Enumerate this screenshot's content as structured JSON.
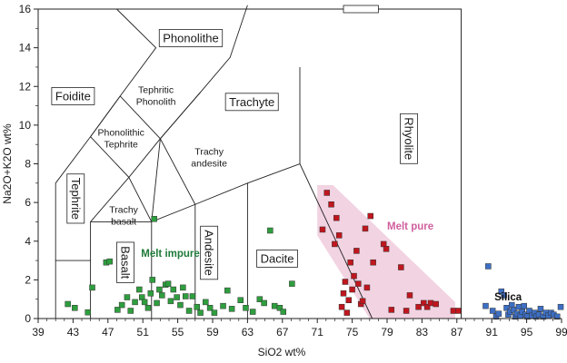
{
  "chart_data": {
    "type": "scatter",
    "xlabel": "SiO2  wt%",
    "ylabel": "Na2O+K2O wt%",
    "xlim": [
      39,
      99
    ],
    "ylim": [
      0,
      16
    ],
    "xticks": [
      39,
      43,
      47,
      51,
      55,
      59,
      63,
      67,
      71,
      75,
      79,
      83,
      87,
      91,
      95,
      99
    ],
    "yticks": [
      0,
      2,
      4,
      6,
      8,
      10,
      12,
      14,
      16
    ],
    "grid": false,
    "fields": [
      {
        "key": "foidite",
        "label": "Foidite",
        "boxed": true,
        "x": 43,
        "y": 11.5
      },
      {
        "key": "phonolithe",
        "label": "Phonolithe",
        "boxed": true,
        "x": 56.5,
        "y": 14.5
      },
      {
        "key": "tephritic_phonolith",
        "label": [
          "Tephritic",
          "Phonolith"
        ],
        "boxed": false,
        "x": 52.5,
        "y": 11.5
      },
      {
        "key": "trachyte",
        "label": "Trachyte",
        "boxed": true,
        "x": 63.5,
        "y": 11.2
      },
      {
        "key": "phonolithic_tephrite",
        "label": [
          "Phonolithic",
          "Tephrite"
        ],
        "boxed": false,
        "x": 48.5,
        "y": 9.3
      },
      {
        "key": "trachy_andesite",
        "label": [
          "Trachy",
          "andesite"
        ],
        "boxed": false,
        "x": 58.6,
        "y": 8.3
      },
      {
        "key": "rhyolite",
        "label": "Rhyolite",
        "boxed": true,
        "vertical": true,
        "x": 81.5,
        "y": 9.3
      },
      {
        "key": "tephrite",
        "label": "Tephrite",
        "boxed": true,
        "vertical": true,
        "x": 43.3,
        "y": 6.2
      },
      {
        "key": "trachy_basalt",
        "label": [
          "Trachy",
          "basalt"
        ],
        "boxed": false,
        "x": 48.8,
        "y": 5.3
      },
      {
        "key": "basalt",
        "label": "Basalt",
        "boxed": true,
        "vertical": true,
        "x": 49,
        "y": 2.9
      },
      {
        "key": "andesite",
        "label": "Andesite",
        "boxed": true,
        "vertical": true,
        "x": 58.6,
        "y": 3.4
      },
      {
        "key": "dacite",
        "label": "Dacite",
        "boxed": true,
        "x": 66.4,
        "y": 3.1
      }
    ],
    "annotations": [
      {
        "key": "melt_impure",
        "text": "Melt impure",
        "x": 50.8,
        "y": 3.2,
        "color": "#1f7a3a"
      },
      {
        "key": "melt_pure",
        "text": "Melt pure",
        "x": 79,
        "y": 4.6,
        "color": "#d05f9e"
      },
      {
        "key": "silica",
        "text": "Silica",
        "x": 91.3,
        "y": 0.95,
        "color": "#111111"
      }
    ],
    "series": [
      {
        "key": "melt_impure",
        "color": "#2e9e3e",
        "points": [
          [
            42.4,
            0.75
          ],
          [
            43.2,
            0.55
          ],
          [
            44.7,
            0.32
          ],
          [
            45.2,
            1.6
          ],
          [
            46.8,
            2.9
          ],
          [
            47.2,
            2.95
          ],
          [
            48.1,
            0.45
          ],
          [
            48.6,
            0.7
          ],
          [
            49.2,
            1.1
          ],
          [
            49.6,
            0.4
          ],
          [
            50.1,
            0.85
          ],
          [
            50.6,
            1.5
          ],
          [
            50.9,
            1.1
          ],
          [
            51.2,
            0.85
          ],
          [
            51.6,
            0.55
          ],
          [
            51.9,
            1.3
          ],
          [
            52.1,
            2.0
          ],
          [
            52.3,
            5.15
          ],
          [
            52.6,
            0.8
          ],
          [
            52.9,
            1.5
          ],
          [
            53.2,
            1.2
          ],
          [
            53.6,
            1.75
          ],
          [
            53.9,
            1.8
          ],
          [
            54.2,
            0.9
          ],
          [
            54.5,
            1.5
          ],
          [
            54.9,
            1.1
          ],
          [
            55.3,
            0.7
          ],
          [
            55.6,
            1.6
          ],
          [
            55.9,
            1.15
          ],
          [
            56.3,
            0.4
          ],
          [
            56.7,
            1.15
          ],
          [
            57.2,
            0.6
          ],
          [
            57.6,
            0.3
          ],
          [
            58.2,
            0.85
          ],
          [
            58.7,
            0.55
          ],
          [
            59.2,
            0.3
          ],
          [
            60.2,
            0.65
          ],
          [
            60.7,
            1.45
          ],
          [
            61.2,
            0.5
          ],
          [
            62.2,
            0.95
          ],
          [
            62.8,
            0.55
          ],
          [
            63.6,
            0.35
          ],
          [
            64.4,
            1.0
          ],
          [
            64.9,
            0.8
          ],
          [
            65.6,
            4.55
          ],
          [
            66.1,
            0.65
          ],
          [
            66.7,
            0.55
          ],
          [
            67.1,
            0.35
          ],
          [
            68.1,
            1.8
          ]
        ]
      },
      {
        "key": "melt_pure",
        "color": "#c0161e",
        "points": [
          [
            71.6,
            4.6
          ],
          [
            72.1,
            6.5
          ],
          [
            72.6,
            5.9
          ],
          [
            73.0,
            3.85
          ],
          [
            73.2,
            5.2
          ],
          [
            73.5,
            4.3
          ],
          [
            73.8,
            0.6
          ],
          [
            74.0,
            1.3
          ],
          [
            74.2,
            1.9
          ],
          [
            74.4,
            0.3
          ],
          [
            74.6,
            0.95
          ],
          [
            74.8,
            2.9
          ],
          [
            75.0,
            1.5
          ],
          [
            75.2,
            2.2
          ],
          [
            75.5,
            3.5
          ],
          [
            75.7,
            1.8
          ],
          [
            76.0,
            0.75
          ],
          [
            76.2,
            0.9
          ],
          [
            76.5,
            4.65
          ],
          [
            76.7,
            1.6
          ],
          [
            77.1,
            5.3
          ],
          [
            77.4,
            2.9
          ],
          [
            78.6,
            3.85
          ],
          [
            78.9,
            3.6
          ],
          [
            79.5,
            0.45
          ],
          [
            80.6,
            2.65
          ],
          [
            81.2,
            0.4
          ],
          [
            81.6,
            1.2
          ],
          [
            82.6,
            0.6
          ],
          [
            83.2,
            0.8
          ],
          [
            83.6,
            0.6
          ],
          [
            84.0,
            0.8
          ],
          [
            84.6,
            0.75
          ],
          [
            86.6,
            0.4
          ],
          [
            87.2,
            0.4
          ]
        ]
      },
      {
        "key": "silica",
        "color": "#3d6fc4",
        "points": [
          [
            90.3,
            0.65
          ],
          [
            90.6,
            2.7
          ],
          [
            91.1,
            0.4
          ],
          [
            91.5,
            0.1
          ],
          [
            91.8,
            0.25
          ],
          [
            92.1,
            1.4
          ],
          [
            92.4,
            1.2
          ],
          [
            92.7,
            0.55
          ],
          [
            92.9,
            0.2
          ],
          [
            93.1,
            0.35
          ],
          [
            93.3,
            0.7
          ],
          [
            93.5,
            0.45
          ],
          [
            93.7,
            0.1
          ],
          [
            93.9,
            0.25
          ],
          [
            94.1,
            0.6
          ],
          [
            94.3,
            0.15
          ],
          [
            94.5,
            0.35
          ],
          [
            94.7,
            0.65
          ],
          [
            94.9,
            0.2
          ],
          [
            95.1,
            0.1
          ],
          [
            95.3,
            0.4
          ],
          [
            95.6,
            0.15
          ],
          [
            95.9,
            0.3
          ],
          [
            96.1,
            0.1
          ],
          [
            96.4,
            0.2
          ],
          [
            96.6,
            0.5
          ],
          [
            96.9,
            0.1
          ],
          [
            97.2,
            0.3
          ],
          [
            97.5,
            0.15
          ],
          [
            97.8,
            0.3
          ],
          [
            98.1,
            0.2
          ],
          [
            98.5,
            0.1
          ],
          [
            98.9,
            0.6
          ]
        ]
      }
    ],
    "melt_pure_region": [
      [
        71.0,
        6.9
      ],
      [
        72.8,
        6.9
      ],
      [
        86.8,
        0.85
      ],
      [
        86.8,
        0.0
      ],
      [
        77.0,
        0.0
      ],
      [
        71.0,
        4.3
      ]
    ],
    "region_color": "#f2d3e1",
    "boundaries": [
      [
        [
          41,
          0
        ],
        [
          41,
          3
        ],
        [
          45,
          3
        ]
      ],
      [
        [
          41,
          3
        ],
        [
          41,
          7
        ],
        [
          45,
          9.4
        ],
        [
          48.4,
          11.5
        ],
        [
          52.5,
          14
        ],
        [
          48,
          16
        ]
      ],
      [
        [
          45,
          0
        ],
        [
          45,
          5
        ],
        [
          49.4,
          7.3
        ],
        [
          53,
          9.3
        ],
        [
          57.6,
          11.7
        ],
        [
          61,
          13.5
        ],
        [
          63,
          16.2
        ]
      ],
      [
        [
          45,
          5
        ],
        [
          52,
          5
        ],
        [
          57,
          5.9
        ],
        [
          63,
          7
        ],
        [
          69,
          8
        ],
        [
          69,
          13
        ]
      ],
      [
        [
          52,
          0
        ],
        [
          52,
          5
        ],
        [
          53,
          9.3
        ],
        [
          48.4,
          11.5
        ],
        [
          45,
          9.4
        ],
        [
          49.4,
          7.3
        ],
        [
          52,
          5
        ]
      ],
      [
        [
          57.6,
          11.7
        ],
        [
          53,
          9.3
        ],
        [
          57,
          5.9
        ],
        [
          57,
          0
        ]
      ],
      [
        [
          63,
          0
        ],
        [
          63,
          7
        ]
      ],
      [
        [
          69,
          8
        ],
        [
          77.3,
          0
        ]
      ]
    ],
    "zero_segment": [
      [
        41,
        0
      ],
      [
        87,
        0
      ]
    ]
  }
}
